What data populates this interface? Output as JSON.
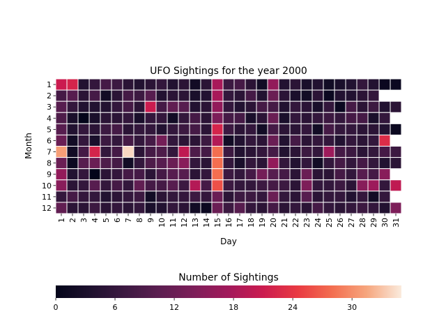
{
  "chart_data": {
    "type": "heatmap",
    "title": "UFO Sightings for the year 2000",
    "xlabel": "Day",
    "ylabel": "Month",
    "x_categories": [
      "1",
      "2",
      "3",
      "4",
      "5",
      "6",
      "7",
      "8",
      "9",
      "10",
      "11",
      "12",
      "13",
      "14",
      "15",
      "16",
      "17",
      "18",
      "19",
      "20",
      "21",
      "22",
      "23",
      "24",
      "25",
      "26",
      "27",
      "28",
      "29",
      "30",
      "31"
    ],
    "y_categories": [
      "1",
      "2",
      "3",
      "4",
      "5",
      "6",
      "7",
      "8",
      "9",
      "10",
      "11",
      "12"
    ],
    "values": [
      [
        21,
        22,
        4,
        6,
        8,
        7,
        5,
        4,
        5,
        6,
        4,
        5,
        2,
        5,
        18,
        7,
        8,
        5,
        2,
        16,
        4,
        5,
        3,
        4,
        2,
        3,
        4,
        6,
        4,
        1,
        1
      ],
      [
        8,
        10,
        5,
        8,
        2,
        5,
        8,
        7,
        10,
        4,
        5,
        5,
        3,
        4,
        18,
        6,
        5,
        8,
        4,
        12,
        5,
        3,
        2,
        5,
        1,
        4,
        4,
        5,
        6,
        null,
        null
      ],
      [
        10,
        6,
        4,
        4,
        4,
        6,
        8,
        5,
        21,
        8,
        11,
        10,
        4,
        5,
        16,
        6,
        4,
        5,
        8,
        8,
        4,
        6,
        5,
        3,
        6,
        1,
        8,
        5,
        7,
        4,
        5
      ],
      [
        9,
        3,
        0,
        3,
        5,
        5,
        6,
        3,
        6,
        6,
        2,
        6,
        8,
        5,
        14,
        8,
        8,
        3,
        5,
        12,
        3,
        6,
        5,
        6,
        7,
        6,
        8,
        8,
        3,
        6,
        null
      ],
      [
        10,
        4,
        6,
        5,
        7,
        8,
        5,
        6,
        6,
        4,
        6,
        7,
        8,
        5,
        22,
        7,
        5,
        6,
        2,
        8,
        5,
        5,
        6,
        2,
        8,
        6,
        6,
        5,
        5,
        4,
        1
      ],
      [
        12,
        2,
        6,
        3,
        7,
        6,
        8,
        6,
        8,
        13,
        6,
        5,
        5,
        7,
        19,
        2,
        4,
        6,
        5,
        12,
        4,
        8,
        5,
        6,
        6,
        4,
        6,
        5,
        6,
        23,
        null
      ],
      [
        31,
        2,
        8,
        22,
        6,
        8,
        34,
        5,
        8,
        9,
        6,
        20,
        9,
        8,
        28,
        7,
        4,
        5,
        6,
        8,
        4,
        5,
        7,
        6,
        17,
        8,
        7,
        5,
        6,
        8,
        7
      ],
      [
        12,
        1,
        10,
        12,
        9,
        8,
        2,
        6,
        9,
        10,
        12,
        15,
        6,
        5,
        28,
        6,
        3,
        6,
        5,
        16,
        6,
        4,
        6,
        2,
        6,
        8,
        6,
        8,
        6,
        4,
        5
      ],
      [
        16,
        4,
        6,
        0,
        5,
        6,
        8,
        8,
        5,
        8,
        10,
        10,
        5,
        6,
        28,
        7,
        6,
        8,
        13,
        10,
        8,
        5,
        12,
        5,
        5,
        8,
        6,
        10,
        8,
        15,
        null
      ],
      [
        15,
        5,
        6,
        10,
        6,
        8,
        6,
        11,
        8,
        8,
        10,
        7,
        19,
        8,
        26,
        7,
        6,
        6,
        7,
        8,
        7,
        5,
        14,
        6,
        6,
        7,
        5,
        15,
        17,
        6,
        20
      ],
      [
        6,
        8,
        6,
        6,
        4,
        5,
        6,
        7,
        2,
        5,
        6,
        6,
        7,
        6,
        12,
        5,
        7,
        7,
        6,
        12,
        6,
        5,
        10,
        5,
        6,
        6,
        4,
        6,
        2,
        6,
        null
      ],
      [
        11,
        5,
        5,
        7,
        5,
        6,
        5,
        6,
        3,
        4,
        6,
        5,
        2,
        1,
        12,
        7,
        10,
        6,
        5,
        8,
        5,
        6,
        5,
        8,
        6,
        5,
        6,
        7,
        6,
        4,
        14
      ]
    ],
    "vmin": 0,
    "vmax": 35,
    "colorbar": {
      "label": "Number of Sightings",
      "ticks": [
        0,
        6,
        12,
        18,
        24,
        30
      ],
      "orientation": "horizontal"
    }
  }
}
